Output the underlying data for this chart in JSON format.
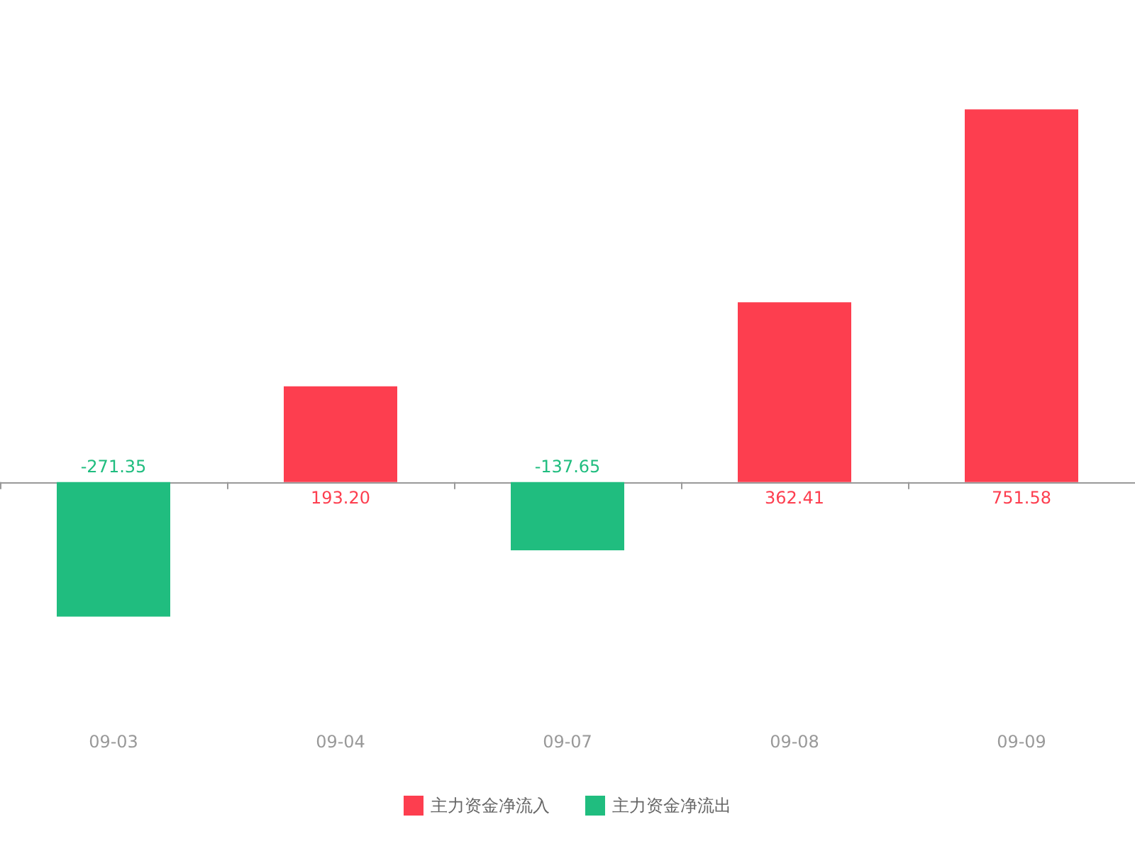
{
  "chart_data": {
    "type": "bar",
    "categories": [
      "09-03",
      "09-04",
      "09-07",
      "09-08",
      "09-09"
    ],
    "series": [
      {
        "name": "主力资金净流入",
        "color": "#fd3e4f",
        "values": [
          null,
          193.2,
          null,
          362.41,
          751.58
        ],
        "value_labels": [
          null,
          "193.20",
          null,
          "362.41",
          "751.58"
        ]
      },
      {
        "name": "主力资金净流出",
        "color": "#20bd7f",
        "values": [
          -271.35,
          null,
          -137.65,
          null,
          null
        ],
        "value_labels": [
          "-271.35",
          null,
          "-137.65",
          null,
          null
        ]
      }
    ],
    "legend": "bottom"
  }
}
